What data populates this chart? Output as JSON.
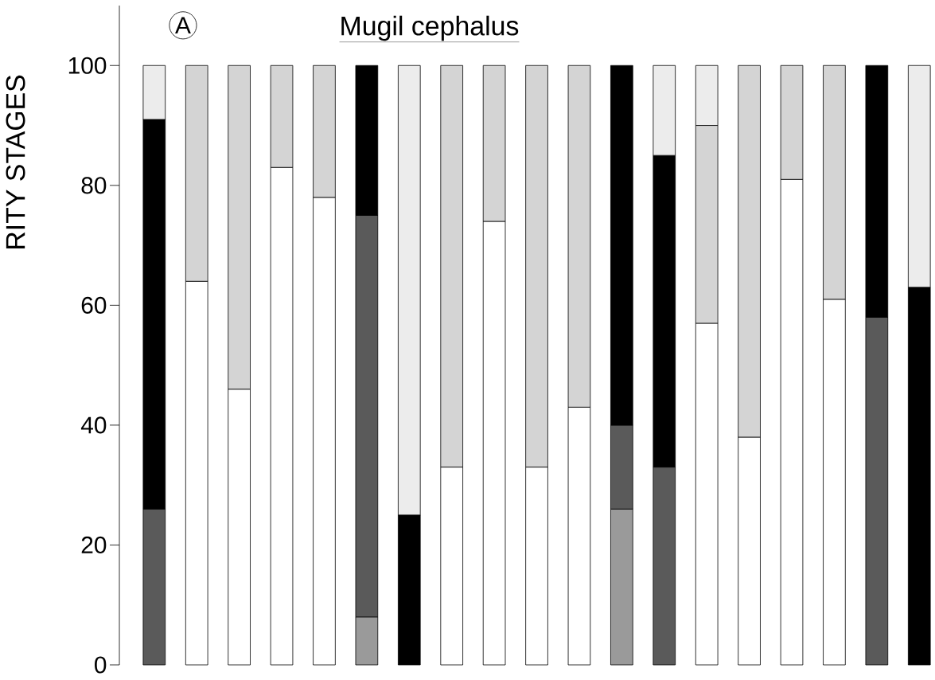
{
  "chart_data": {
    "type": "bar",
    "stacked": true,
    "title": "Mugil cephalus",
    "annotations": [
      "A"
    ],
    "ylabel": "RITY STAGES",
    "categories": [
      null,
      null,
      null,
      null,
      null,
      null,
      null,
      null,
      null,
      null,
      null,
      null,
      null,
      null,
      null,
      null,
      null,
      null,
      null
    ],
    "ylim": [
      0,
      110
    ],
    "yticks": [
      0,
      20,
      40,
      60,
      80,
      100
    ],
    "tick_labels": "y",
    "grid": false,
    "series": [
      {
        "color": "#9a9a9a",
        "values": [
          null,
          null,
          null,
          null,
          null,
          8,
          null,
          null,
          null,
          null,
          null,
          26,
          null,
          null,
          null,
          null,
          null,
          null,
          null
        ]
      },
      {
        "color": "#5a5a5a",
        "values": [
          26,
          null,
          null,
          null,
          null,
          67,
          null,
          null,
          null,
          null,
          null,
          14,
          33,
          null,
          null,
          null,
          null,
          58,
          null
        ]
      },
      {
        "color": "#ffffff",
        "values": [
          null,
          64,
          46,
          83,
          78,
          null,
          null,
          33,
          74,
          33,
          43,
          null,
          null,
          57,
          38,
          81,
          61,
          null,
          null
        ]
      },
      {
        "color": "#d4d4d4",
        "values": [
          null,
          36,
          54,
          17,
          22,
          null,
          null,
          67,
          26,
          67,
          57,
          null,
          null,
          33,
          62,
          19,
          39,
          null,
          null
        ]
      },
      {
        "color": "#000000",
        "values": [
          65,
          null,
          null,
          null,
          null,
          25,
          25,
          null,
          null,
          null,
          null,
          60,
          52,
          null,
          null,
          null,
          null,
          42,
          63
        ]
      },
      {
        "color": "#ececec",
        "values": [
          9,
          null,
          null,
          null,
          null,
          null,
          75,
          null,
          null,
          null,
          null,
          null,
          15,
          10,
          null,
          null,
          null,
          null,
          37
        ]
      }
    ]
  }
}
